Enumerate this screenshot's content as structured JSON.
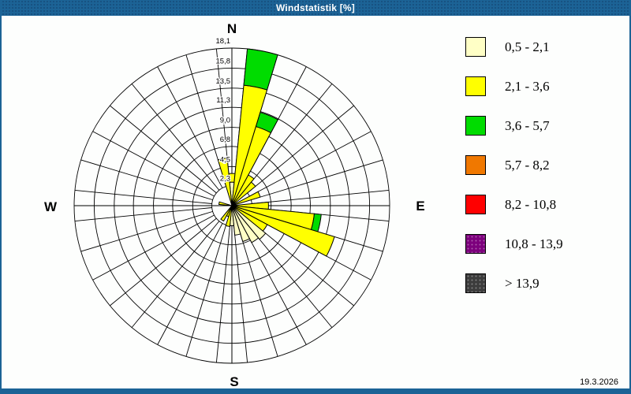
{
  "window": {
    "title": "Windstatistik [%]",
    "date": "19.3.2026",
    "titlebar_color": "#1c6396"
  },
  "compass": {
    "n": "N",
    "e": "E",
    "s": "S",
    "w": "W"
  },
  "chart_data": {
    "type": "wind-rose",
    "title": "Windstatistik [%]",
    "units": "percent",
    "sector_count": 32,
    "sector_width_deg": 11.25,
    "axis_max": 18.1,
    "ring_values": [
      2.3,
      4.5,
      6.8,
      9.0,
      11.3,
      13.5,
      15.8,
      18.1
    ],
    "ring_labels": [
      "2,3",
      "4,5",
      "6,8",
      "9,0",
      "11,3",
      "13,5",
      "15,8",
      "18,1"
    ],
    "grid_color": "#000000",
    "speed_bins": [
      {
        "label": "0,5 - 2,1",
        "color": "#ffffc6",
        "patterned": false
      },
      {
        "label": "2,1 - 3,6",
        "color": "#ffff00",
        "patterned": false
      },
      {
        "label": "3,6 - 5,7",
        "color": "#00dc00",
        "patterned": false
      },
      {
        "label": "5,7 - 8,2",
        "color": "#f07800",
        "patterned": false
      },
      {
        "label": "8,2 - 10,8",
        "color": "#ff0000",
        "patterned": false
      },
      {
        "label": "10,8 - 13,9",
        "color": "#7d007d",
        "patterned": true
      },
      {
        "label": "> 13,9",
        "color": "#3c3c3c",
        "patterned": true
      }
    ],
    "sectors": [
      {
        "dir": 0.0,
        "segments": [
          {
            "bin": 0,
            "value": 2.7
          },
          {
            "bin": 1,
            "value": 1.0
          }
        ]
      },
      {
        "dir": 11.25,
        "segments": [
          {
            "bin": 1,
            "value": 13.9
          },
          {
            "bin": 2,
            "value": 4.2
          }
        ]
      },
      {
        "dir": 22.5,
        "segments": [
          {
            "bin": 1,
            "value": 9.5
          },
          {
            "bin": 2,
            "value": 1.7
          }
        ]
      },
      {
        "dir": 33.75,
        "segments": [
          {
            "bin": 1,
            "value": 4.0
          }
        ]
      },
      {
        "dir": 45.0,
        "segments": [
          {
            "bin": 1,
            "value": 3.5
          }
        ]
      },
      {
        "dir": 67.5,
        "segments": [
          {
            "bin": 1,
            "value": 3.4
          }
        ]
      },
      {
        "dir": 90.0,
        "segments": [
          {
            "bin": 1,
            "value": 4.2
          }
        ]
      },
      {
        "dir": 101.25,
        "segments": [
          {
            "bin": 1,
            "value": 9.5
          },
          {
            "bin": 2,
            "value": 0.8
          }
        ]
      },
      {
        "dir": 112.5,
        "segments": [
          {
            "bin": 1,
            "value": 12.3
          }
        ]
      },
      {
        "dir": 123.75,
        "segments": [
          {
            "bin": 1,
            "value": 4.6
          }
        ]
      },
      {
        "dir": 135.0,
        "segments": [
          {
            "bin": 0,
            "value": 5.0
          }
        ]
      },
      {
        "dir": 146.25,
        "segments": [
          {
            "bin": 0,
            "value": 4.8
          }
        ]
      },
      {
        "dir": 157.5,
        "segments": [
          {
            "bin": 0,
            "value": 4.3
          }
        ]
      },
      {
        "dir": 168.75,
        "segments": [
          {
            "bin": 0,
            "value": 3.4
          }
        ]
      },
      {
        "dir": 180.0,
        "segments": [
          {
            "bin": 0,
            "value": 2.3
          }
        ]
      },
      {
        "dir": 191.25,
        "segments": [
          {
            "bin": 1,
            "value": 2.4
          }
        ]
      },
      {
        "dir": 202.5,
        "segments": [
          {
            "bin": 1,
            "value": 1.3
          }
        ]
      },
      {
        "dir": 213.75,
        "segments": [
          {
            "bin": 1,
            "value": 2.0
          }
        ]
      },
      {
        "dir": 281.25,
        "segments": [
          {
            "bin": 1,
            "value": 1.5
          }
        ]
      },
      {
        "dir": 348.75,
        "segments": [
          {
            "bin": 1,
            "value": 5.5
          }
        ]
      }
    ],
    "legend_position": "right",
    "compass_labels": [
      "N",
      "E",
      "S",
      "W"
    ]
  }
}
